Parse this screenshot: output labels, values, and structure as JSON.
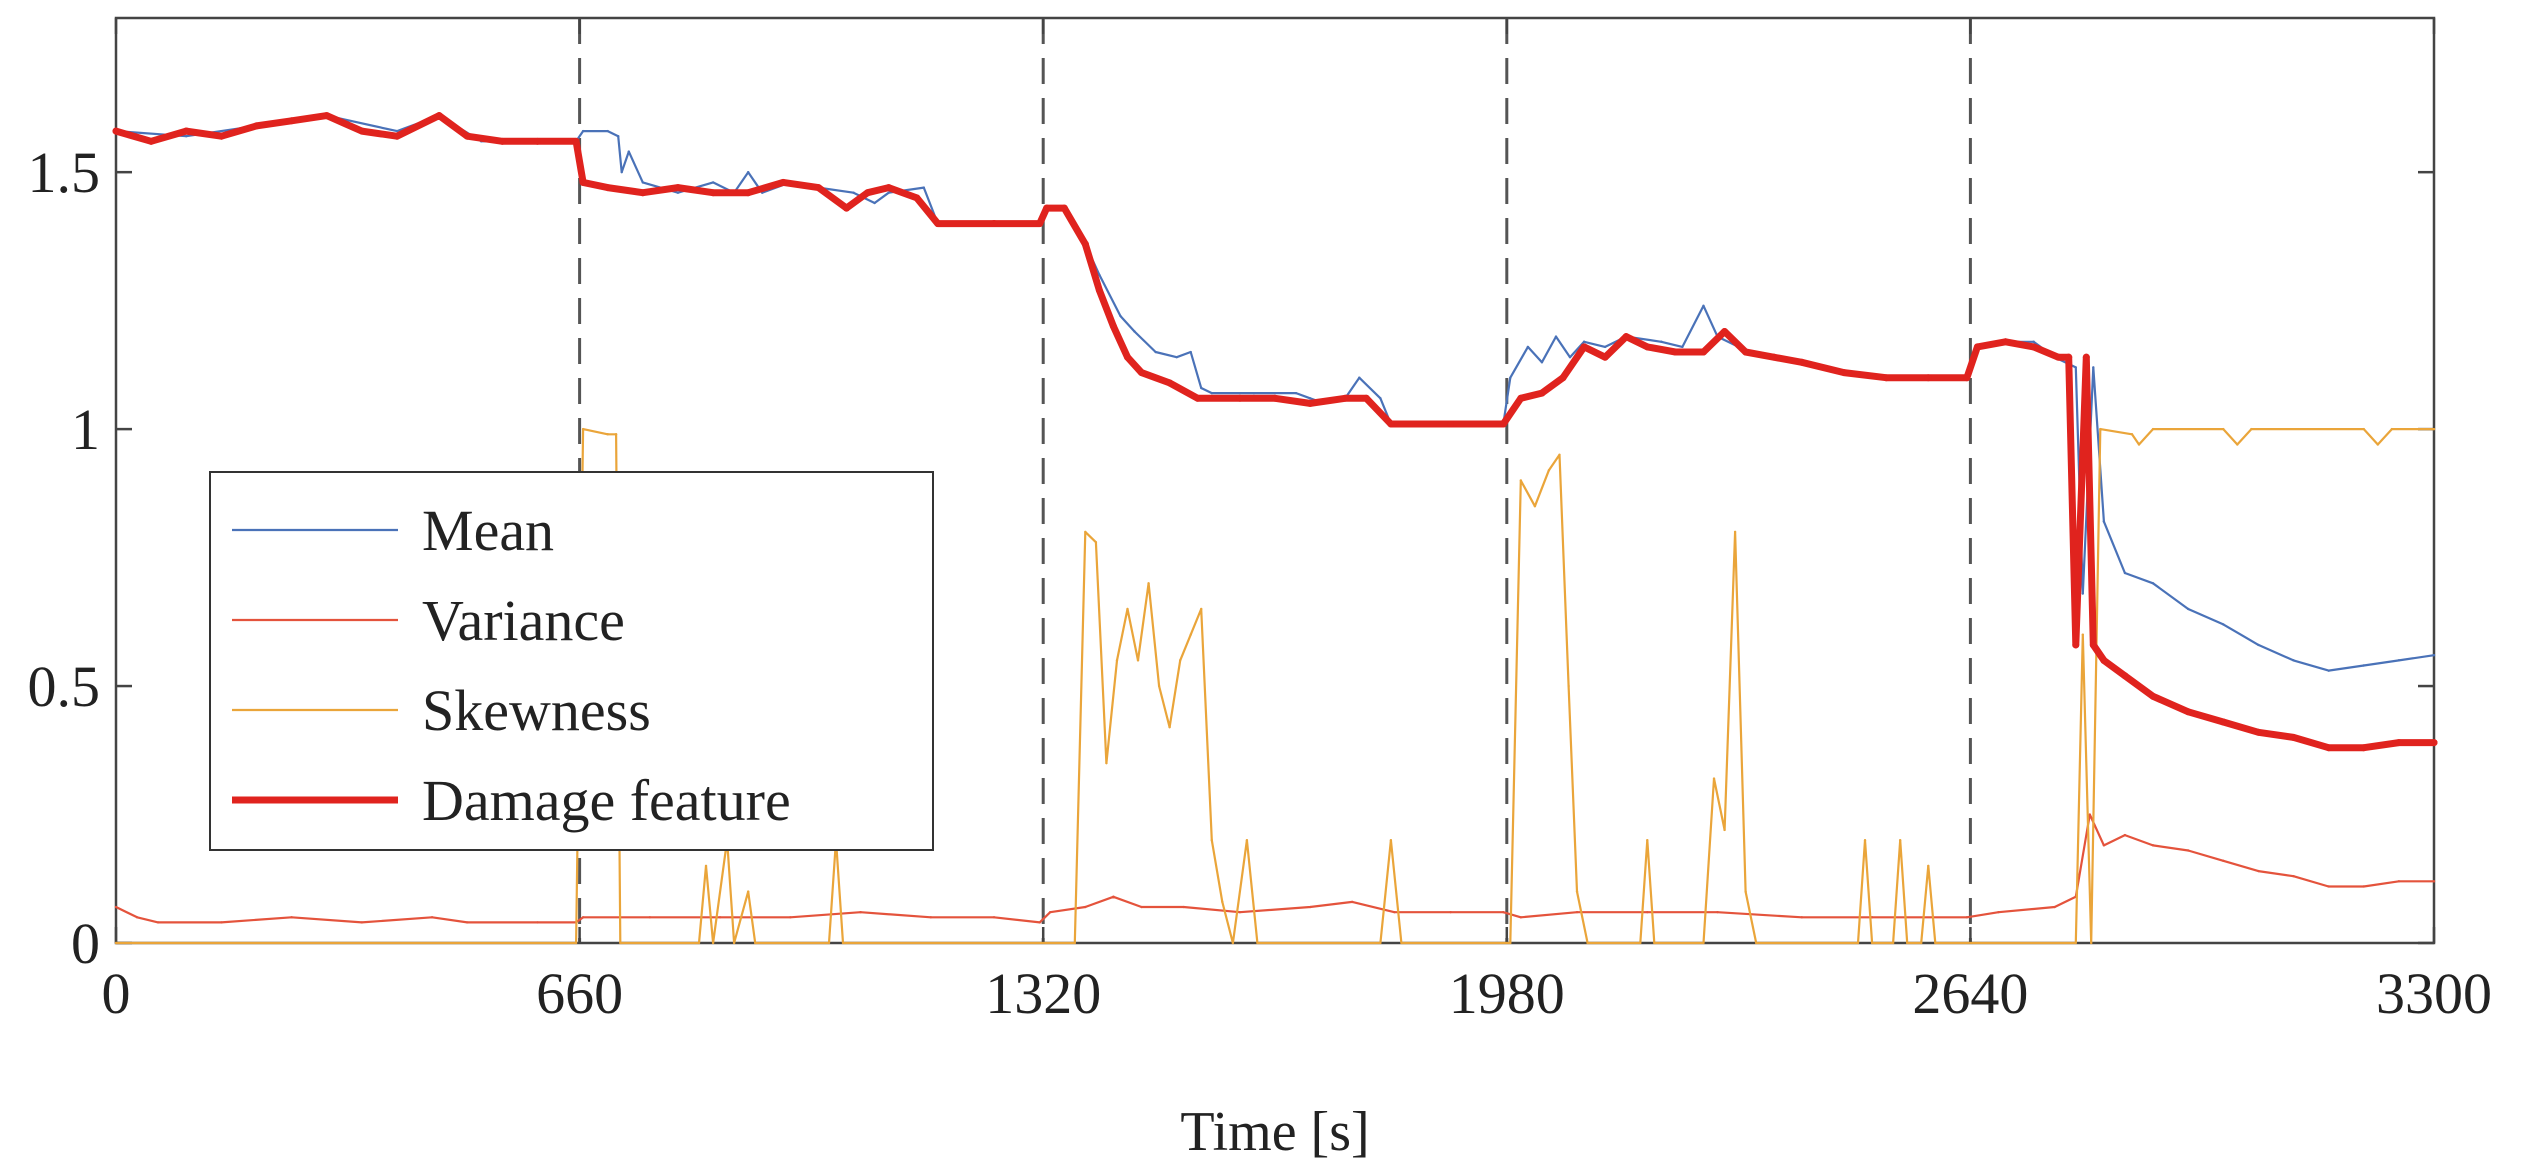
{
  "chart_data": {
    "type": "line",
    "title": "",
    "xlabel": "Time [s]",
    "ylabel": "",
    "xlim": [
      0,
      3300
    ],
    "ylim": [
      0,
      1.8
    ],
    "grid": false,
    "legend_position": "left-middle",
    "x_ticks": [
      0,
      660,
      1320,
      1980,
      2640,
      3300
    ],
    "x_tick_labels": [
      "0",
      "660",
      "1320",
      "1980",
      "2640",
      "3300"
    ],
    "y_ticks": [
      0,
      0.5,
      1,
      1.5
    ],
    "y_tick_labels": [
      "0",
      "0.5",
      "1",
      "1.5"
    ],
    "vlines": [
      660,
      1320,
      1980,
      2640
    ],
    "series": [
      {
        "name": "Mean",
        "color": "#4a72b8",
        "style": "thin",
        "points": [
          [
            0,
            1.58
          ],
          [
            100,
            1.57
          ],
          [
            200,
            1.59
          ],
          [
            300,
            1.61
          ],
          [
            400,
            1.58
          ],
          [
            460,
            1.61
          ],
          [
            520,
            1.56
          ],
          [
            600,
            1.56
          ],
          [
            655,
            1.56
          ],
          [
            665,
            1.58
          ],
          [
            700,
            1.58
          ],
          [
            715,
            1.57
          ],
          [
            720,
            1.5
          ],
          [
            730,
            1.54
          ],
          [
            750,
            1.48
          ],
          [
            800,
            1.46
          ],
          [
            850,
            1.48
          ],
          [
            880,
            1.46
          ],
          [
            900,
            1.5
          ],
          [
            920,
            1.46
          ],
          [
            960,
            1.48
          ],
          [
            1000,
            1.47
          ],
          [
            1050,
            1.46
          ],
          [
            1080,
            1.44
          ],
          [
            1100,
            1.46
          ],
          [
            1150,
            1.47
          ],
          [
            1170,
            1.4
          ],
          [
            1250,
            1.4
          ],
          [
            1315,
            1.4
          ],
          [
            1325,
            1.43
          ],
          [
            1350,
            1.43
          ],
          [
            1380,
            1.36
          ],
          [
            1400,
            1.3
          ],
          [
            1430,
            1.22
          ],
          [
            1450,
            1.19
          ],
          [
            1480,
            1.15
          ],
          [
            1510,
            1.14
          ],
          [
            1530,
            1.15
          ],
          [
            1545,
            1.08
          ],
          [
            1560,
            1.07
          ],
          [
            1620,
            1.07
          ],
          [
            1680,
            1.07
          ],
          [
            1700,
            1.06
          ],
          [
            1720,
            1.05
          ],
          [
            1750,
            1.06
          ],
          [
            1770,
            1.1
          ],
          [
            1800,
            1.06
          ],
          [
            1815,
            1.01
          ],
          [
            1900,
            1.01
          ],
          [
            1975,
            1.01
          ],
          [
            1985,
            1.1
          ],
          [
            2010,
            1.16
          ],
          [
            2030,
            1.13
          ],
          [
            2050,
            1.18
          ],
          [
            2070,
            1.14
          ],
          [
            2090,
            1.17
          ],
          [
            2120,
            1.16
          ],
          [
            2150,
            1.18
          ],
          [
            2200,
            1.17
          ],
          [
            2230,
            1.16
          ],
          [
            2260,
            1.24
          ],
          [
            2280,
            1.18
          ],
          [
            2310,
            1.16
          ],
          [
            2350,
            1.14
          ],
          [
            2400,
            1.13
          ],
          [
            2450,
            1.11
          ],
          [
            2500,
            1.1
          ],
          [
            2560,
            1.1
          ],
          [
            2635,
            1.1
          ],
          [
            2650,
            1.16
          ],
          [
            2690,
            1.17
          ],
          [
            2730,
            1.17
          ],
          [
            2760,
            1.14
          ],
          [
            2790,
            1.12
          ],
          [
            2800,
            0.68
          ],
          [
            2815,
            1.12
          ],
          [
            2830,
            0.82
          ],
          [
            2860,
            0.72
          ],
          [
            2900,
            0.7
          ],
          [
            2950,
            0.65
          ],
          [
            3000,
            0.62
          ],
          [
            3050,
            0.58
          ],
          [
            3100,
            0.55
          ],
          [
            3150,
            0.53
          ],
          [
            3200,
            0.54
          ],
          [
            3250,
            0.55
          ],
          [
            3300,
            0.56
          ]
        ]
      },
      {
        "name": "Variance",
        "color": "#e4533c",
        "style": "thin",
        "points": [
          [
            0,
            0.07
          ],
          [
            30,
            0.05
          ],
          [
            60,
            0.04
          ],
          [
            150,
            0.04
          ],
          [
            250,
            0.05
          ],
          [
            350,
            0.04
          ],
          [
            450,
            0.05
          ],
          [
            500,
            0.04
          ],
          [
            600,
            0.04
          ],
          [
            655,
            0.04
          ],
          [
            665,
            0.05
          ],
          [
            760,
            0.05
          ],
          [
            860,
            0.05
          ],
          [
            960,
            0.05
          ],
          [
            1060,
            0.06
          ],
          [
            1160,
            0.05
          ],
          [
            1250,
            0.05
          ],
          [
            1315,
            0.04
          ],
          [
            1330,
            0.06
          ],
          [
            1380,
            0.07
          ],
          [
            1420,
            0.09
          ],
          [
            1460,
            0.07
          ],
          [
            1520,
            0.07
          ],
          [
            1600,
            0.06
          ],
          [
            1700,
            0.07
          ],
          [
            1760,
            0.08
          ],
          [
            1820,
            0.06
          ],
          [
            1900,
            0.06
          ],
          [
            1975,
            0.06
          ],
          [
            2000,
            0.05
          ],
          [
            2080,
            0.06
          ],
          [
            2180,
            0.06
          ],
          [
            2280,
            0.06
          ],
          [
            2400,
            0.05
          ],
          [
            2500,
            0.05
          ],
          [
            2635,
            0.05
          ],
          [
            2680,
            0.06
          ],
          [
            2760,
            0.07
          ],
          [
            2790,
            0.09
          ],
          [
            2810,
            0.25
          ],
          [
            2830,
            0.19
          ],
          [
            2860,
            0.21
          ],
          [
            2900,
            0.19
          ],
          [
            2950,
            0.18
          ],
          [
            3000,
            0.16
          ],
          [
            3050,
            0.14
          ],
          [
            3100,
            0.13
          ],
          [
            3150,
            0.11
          ],
          [
            3200,
            0.11
          ],
          [
            3250,
            0.12
          ],
          [
            3300,
            0.12
          ]
        ]
      },
      {
        "name": "Skewness",
        "color": "#eaa53a",
        "style": "thin",
        "points": [
          [
            0,
            0
          ],
          [
            655,
            0
          ],
          [
            665,
            1.0
          ],
          [
            700,
            0.99
          ],
          [
            712,
            0.99
          ],
          [
            718,
            0
          ],
          [
            830,
            0
          ],
          [
            840,
            0.15
          ],
          [
            850,
            0
          ],
          [
            870,
            0.2
          ],
          [
            880,
            0
          ],
          [
            900,
            0.1
          ],
          [
            910,
            0
          ],
          [
            1015,
            0
          ],
          [
            1025,
            0.2
          ],
          [
            1035,
            0
          ],
          [
            1365,
            0
          ],
          [
            1380,
            0.8
          ],
          [
            1395,
            0.78
          ],
          [
            1410,
            0.35
          ],
          [
            1425,
            0.55
          ],
          [
            1440,
            0.65
          ],
          [
            1455,
            0.55
          ],
          [
            1470,
            0.7
          ],
          [
            1485,
            0.5
          ],
          [
            1500,
            0.42
          ],
          [
            1515,
            0.55
          ],
          [
            1530,
            0.6
          ],
          [
            1545,
            0.65
          ],
          [
            1560,
            0.2
          ],
          [
            1575,
            0.08
          ],
          [
            1590,
            0
          ],
          [
            1610,
            0.2
          ],
          [
            1625,
            0
          ],
          [
            1800,
            0
          ],
          [
            1815,
            0.2
          ],
          [
            1830,
            0
          ],
          [
            1985,
            0
          ],
          [
            2000,
            0.9
          ],
          [
            2020,
            0.85
          ],
          [
            2040,
            0.92
          ],
          [
            2055,
            0.95
          ],
          [
            2068,
            0.5
          ],
          [
            2080,
            0.1
          ],
          [
            2095,
            0
          ],
          [
            2170,
            0
          ],
          [
            2180,
            0.2
          ],
          [
            2190,
            0
          ],
          [
            2260,
            0
          ],
          [
            2275,
            0.32
          ],
          [
            2290,
            0.22
          ],
          [
            2305,
            0.8
          ],
          [
            2320,
            0.1
          ],
          [
            2335,
            0
          ],
          [
            2480,
            0
          ],
          [
            2490,
            0.2
          ],
          [
            2500,
            0
          ],
          [
            2530,
            0
          ],
          [
            2540,
            0.2
          ],
          [
            2550,
            0
          ],
          [
            2570,
            0
          ],
          [
            2580,
            0.15
          ],
          [
            2590,
            0
          ],
          [
            2790,
            0
          ],
          [
            2800,
            0.6
          ],
          [
            2812,
            0
          ],
          [
            2825,
            1.0
          ],
          [
            2870,
            0.99
          ],
          [
            2880,
            0.97
          ],
          [
            2900,
            1.0
          ],
          [
            3000,
            1.0
          ],
          [
            3020,
            0.97
          ],
          [
            3040,
            1.0
          ],
          [
            3200,
            1.0
          ],
          [
            3220,
            0.97
          ],
          [
            3240,
            1.0
          ],
          [
            3300,
            1.0
          ]
        ]
      },
      {
        "name": "Damage feature",
        "color": "#e0231e",
        "style": "thick",
        "points": [
          [
            0,
            1.58
          ],
          [
            50,
            1.56
          ],
          [
            100,
            1.58
          ],
          [
            150,
            1.57
          ],
          [
            200,
            1.59
          ],
          [
            250,
            1.6
          ],
          [
            300,
            1.61
          ],
          [
            350,
            1.58
          ],
          [
            400,
            1.57
          ],
          [
            460,
            1.61
          ],
          [
            500,
            1.57
          ],
          [
            550,
            1.56
          ],
          [
            600,
            1.56
          ],
          [
            655,
            1.56
          ],
          [
            665,
            1.48
          ],
          [
            700,
            1.47
          ],
          [
            750,
            1.46
          ],
          [
            800,
            1.47
          ],
          [
            850,
            1.46
          ],
          [
            900,
            1.46
          ],
          [
            950,
            1.48
          ],
          [
            1000,
            1.47
          ],
          [
            1040,
            1.43
          ],
          [
            1070,
            1.46
          ],
          [
            1100,
            1.47
          ],
          [
            1140,
            1.45
          ],
          [
            1170,
            1.4
          ],
          [
            1250,
            1.4
          ],
          [
            1315,
            1.4
          ],
          [
            1325,
            1.43
          ],
          [
            1350,
            1.43
          ],
          [
            1380,
            1.36
          ],
          [
            1400,
            1.27
          ],
          [
            1420,
            1.2
          ],
          [
            1440,
            1.14
          ],
          [
            1460,
            1.11
          ],
          [
            1500,
            1.09
          ],
          [
            1540,
            1.06
          ],
          [
            1600,
            1.06
          ],
          [
            1650,
            1.06
          ],
          [
            1700,
            1.05
          ],
          [
            1750,
            1.06
          ],
          [
            1780,
            1.06
          ],
          [
            1815,
            1.01
          ],
          [
            1900,
            1.01
          ],
          [
            1975,
            1.01
          ],
          [
            2000,
            1.06
          ],
          [
            2030,
            1.07
          ],
          [
            2060,
            1.1
          ],
          [
            2090,
            1.16
          ],
          [
            2120,
            1.14
          ],
          [
            2150,
            1.18
          ],
          [
            2180,
            1.16
          ],
          [
            2220,
            1.15
          ],
          [
            2260,
            1.15
          ],
          [
            2290,
            1.19
          ],
          [
            2320,
            1.15
          ],
          [
            2360,
            1.14
          ],
          [
            2400,
            1.13
          ],
          [
            2460,
            1.11
          ],
          [
            2520,
            1.1
          ],
          [
            2580,
            1.1
          ],
          [
            2635,
            1.1
          ],
          [
            2650,
            1.16
          ],
          [
            2690,
            1.17
          ],
          [
            2730,
            1.16
          ],
          [
            2765,
            1.14
          ],
          [
            2780,
            1.14
          ],
          [
            2790,
            0.58
          ],
          [
            2805,
            1.14
          ],
          [
            2815,
            0.58
          ],
          [
            2830,
            0.55
          ],
          [
            2860,
            0.52
          ],
          [
            2900,
            0.48
          ],
          [
            2950,
            0.45
          ],
          [
            3000,
            0.43
          ],
          [
            3050,
            0.41
          ],
          [
            3100,
            0.4
          ],
          [
            3150,
            0.38
          ],
          [
            3200,
            0.38
          ],
          [
            3250,
            0.39
          ],
          [
            3300,
            0.39
          ]
        ]
      }
    ]
  }
}
